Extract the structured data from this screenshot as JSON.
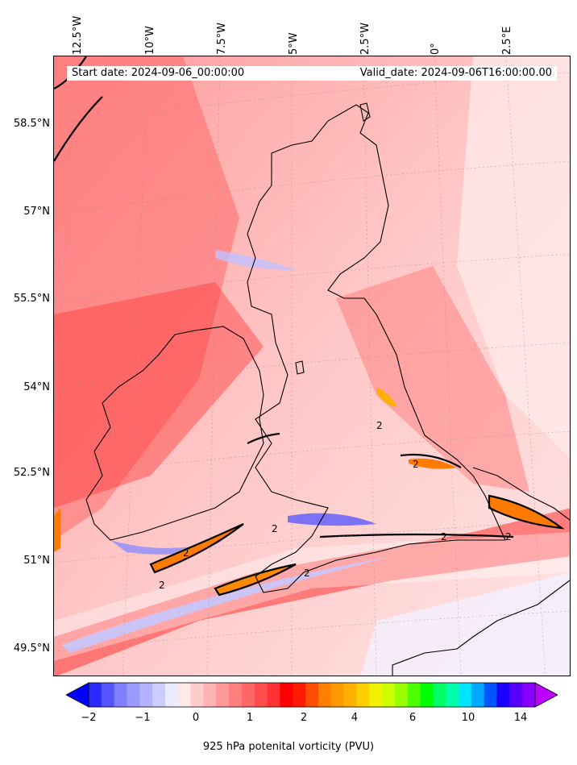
{
  "map": {
    "start_date": "Start date: 2024-09-06_00:00:00",
    "valid_date": "Valid_date: 2024-09-06T16:00:00.00",
    "longitude_labels": [
      "12.5°W",
      "10°W",
      "7.5°W",
      "5°W",
      "2.5°W",
      "0°",
      "2.5°E"
    ],
    "latitude_labels": [
      "58.5°N",
      "57°N",
      "55.5°N",
      "54°N",
      "52.5°N",
      "51°N",
      "49.5°N"
    ],
    "contour_label": "2"
  },
  "colorbar": {
    "label": "925 hPa potenital vorticity (PVU)",
    "tick_labels": [
      "−2",
      "−1",
      "0",
      "1",
      "2",
      "4",
      "6",
      "10",
      "14"
    ],
    "colors": [
      "#0000ff",
      "#2a2aff",
      "#5555ff",
      "#7f7fff",
      "#9999ff",
      "#b3b3ff",
      "#ccccff",
      "#ebebff",
      "#ffe8e8",
      "#ffcccc",
      "#ffb3b3",
      "#ff9999",
      "#ff7f7f",
      "#ff6666",
      "#ff4d4d",
      "#ff3333",
      "#ff0000",
      "#ff1a00",
      "#ff4d00",
      "#ff7f00",
      "#ff9900",
      "#ffb300",
      "#ffd000",
      "#f2f200",
      "#ccff00",
      "#99ff00",
      "#4dff00",
      "#00ff00",
      "#00ff66",
      "#00ffaa",
      "#00e5ff",
      "#00aaff",
      "#0055ff",
      "#1a00ff",
      "#5500ff",
      "#8800ff",
      "#bb00ff"
    ]
  }
}
